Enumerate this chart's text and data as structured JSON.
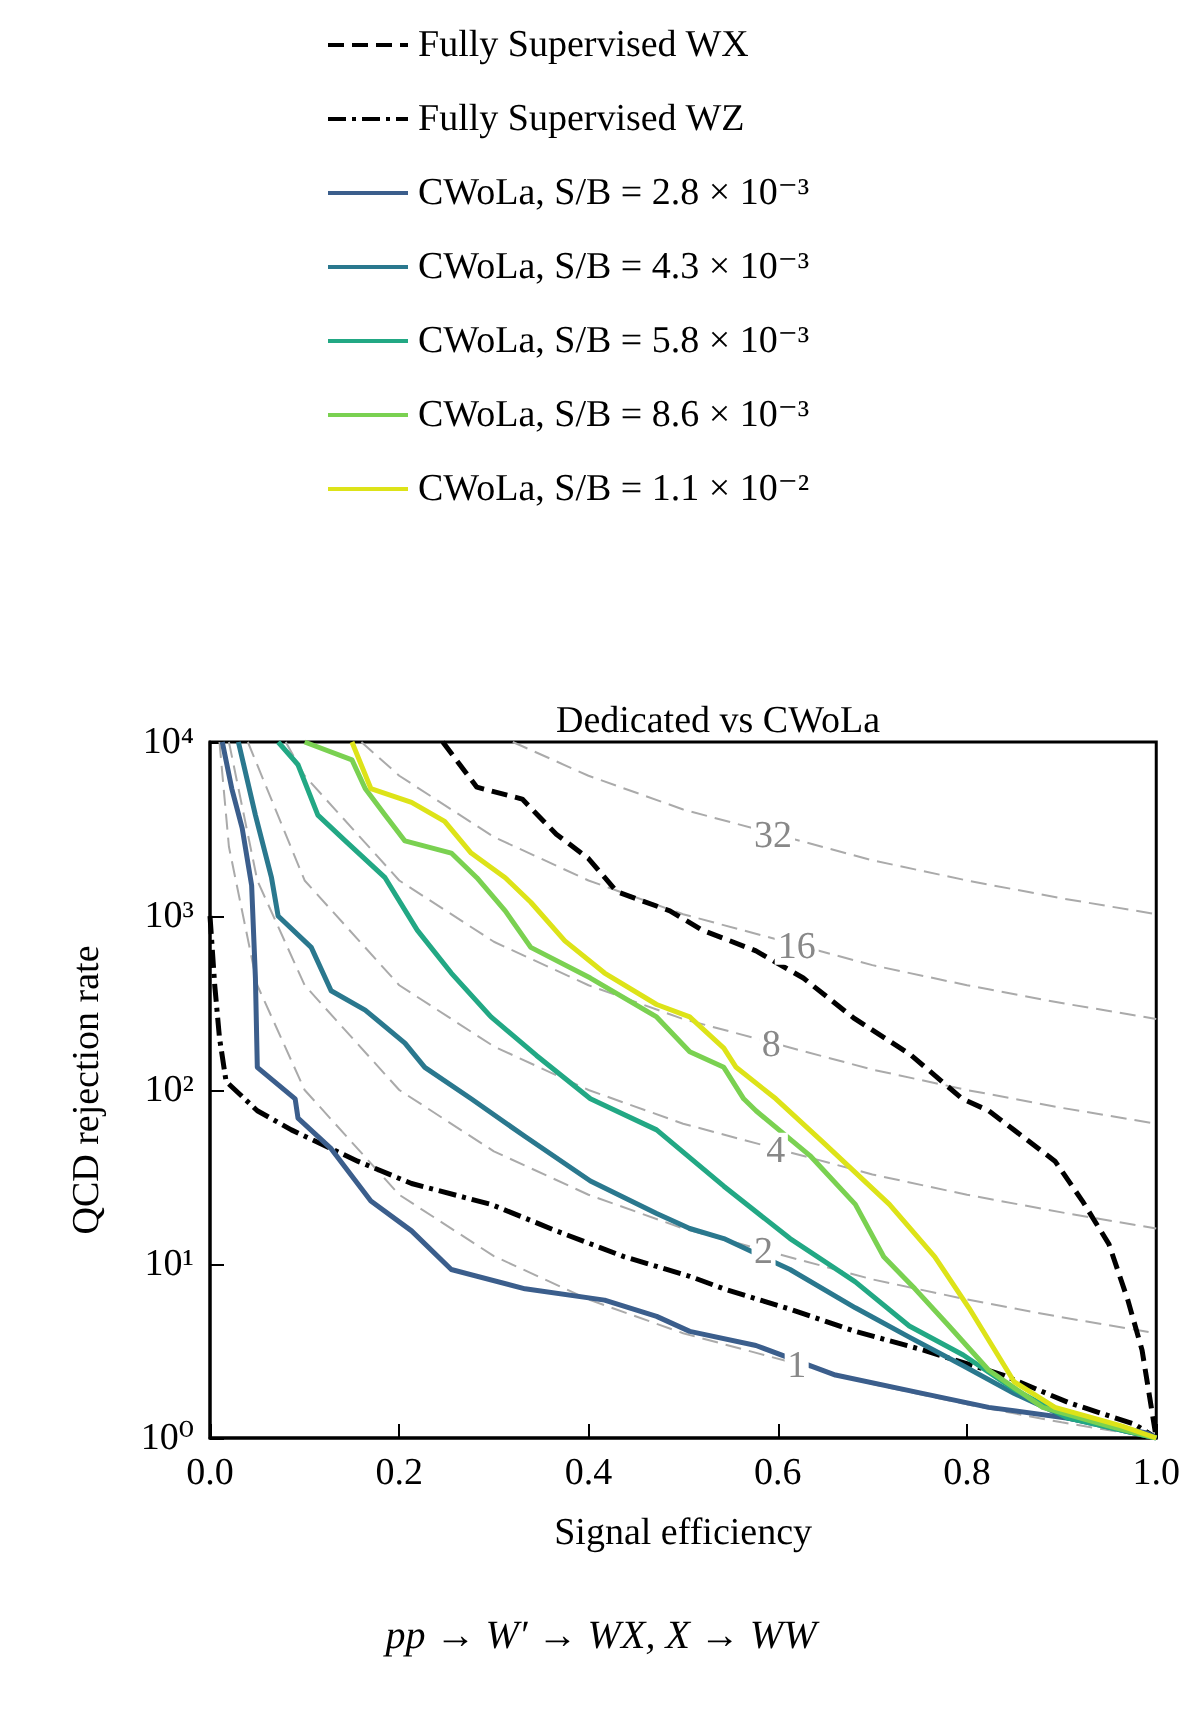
{
  "chart_data": {
    "type": "line",
    "title": "Dedicated vs CWoLa",
    "xlabel": "Signal efficiency",
    "ylabel": "QCD rejection rate",
    "xlim": [
      0,
      1
    ],
    "ylim": [
      1,
      10000
    ],
    "log": "y",
    "grid": false,
    "legend": "top",
    "marker": "none",
    "xticks": [
      {
        "value": 0,
        "label": "0.0"
      },
      {
        "value": 0.2,
        "label": "0.2"
      },
      {
        "value": 0.4,
        "label": "0.4"
      },
      {
        "value": 0.6,
        "label": "0.6"
      },
      {
        "value": 0.8,
        "label": "0.8"
      },
      {
        "value": 1,
        "label": "1.0"
      }
    ],
    "yticks": [
      {
        "value": 1,
        "label": "10⁰"
      },
      {
        "value": 10,
        "label": "10¹"
      },
      {
        "value": 100,
        "label": "10²"
      },
      {
        "value": 1000,
        "label": "10³"
      },
      {
        "value": 10000,
        "label": "10⁴"
      }
    ],
    "series": [
      {
        "name": "Fully Supervised WX",
        "color": "#000000",
        "line_style": "dashed",
        "x": [
          0.246,
          0.282,
          0.33,
          0.366,
          0.4,
          0.43,
          0.486,
          0.52,
          0.577,
          0.627,
          0.68,
          0.74,
          0.795,
          0.823,
          0.893,
          0.922,
          0.95,
          0.97,
          0.985,
          1.0
        ],
        "values": [
          10000,
          5500,
          4700,
          2950,
          2140,
          1380,
          1070,
          830,
          630,
          440,
          260,
          160,
          89,
          76,
          39,
          23,
          13,
          6.2,
          3.2,
          1
        ]
      },
      {
        "name": "Fully Supervised WZ",
        "color": "#000000",
        "line_style": "dashdot",
        "x": [
          0,
          0.005,
          0.01,
          0.017,
          0.05,
          0.086,
          0.156,
          0.213,
          0.297,
          0.366,
          0.438,
          0.507,
          0.543,
          0.613,
          0.682,
          0.754,
          0.838,
          0.907,
          0.977,
          1.0
        ],
        "values": [
          1000,
          400,
          200,
          112,
          76,
          59,
          39,
          29,
          22,
          15.5,
          11,
          8.5,
          7.2,
          5.5,
          4.1,
          3.2,
          2.3,
          1.6,
          1.2,
          1
        ]
      },
      {
        "name": "CWoLa, S/B = 2.8 × 10⁻³",
        "color": "#3b5e8c",
        "line_style": "solid",
        "x": [
          0.013,
          0.023,
          0.034,
          0.044,
          0.048,
          0.05,
          0.09,
          0.093,
          0.128,
          0.17,
          0.213,
          0.255,
          0.333,
          0.417,
          0.472,
          0.507,
          0.577,
          0.661,
          0.754,
          0.823,
          0.907,
          0.99,
          1.0
        ],
        "values": [
          10000,
          5400,
          3200,
          1500,
          440,
          135,
          89,
          69,
          46,
          23,
          15.5,
          9.3,
          7.2,
          6.2,
          5.0,
          4.1,
          3.4,
          2.3,
          1.8,
          1.5,
          1.3,
          1.07,
          1
        ]
      },
      {
        "name": "CWoLa, S/B = 4.3 × 10⁻³",
        "color": "#2a788e",
        "line_style": "solid",
        "x": [
          0.03,
          0.048,
          0.065,
          0.072,
          0.107,
          0.128,
          0.164,
          0.206,
          0.227,
          0.276,
          0.333,
          0.402,
          0.472,
          0.507,
          0.543,
          0.613,
          0.682,
          0.739,
          0.796,
          0.85,
          0.907,
          1.0
        ],
        "values": [
          10000,
          3800,
          1660,
          1000,
          660,
          372,
          288,
          186,
          135,
          89,
          54,
          30,
          19.5,
          16,
          14,
          9.3,
          5.6,
          3.8,
          2.6,
          1.8,
          1.3,
          1
        ]
      },
      {
        "name": "CWoLa, S/B = 5.8 × 10⁻³",
        "color": "#22a884",
        "line_style": "solid",
        "x": [
          0.072,
          0.093,
          0.114,
          0.143,
          0.185,
          0.219,
          0.255,
          0.297,
          0.345,
          0.402,
          0.472,
          0.543,
          0.613,
          0.682,
          0.739,
          0.796,
          0.85,
          0.907,
          1.0
        ],
        "values": [
          10000,
          7400,
          3800,
          2700,
          1660,
          830,
          470,
          263,
          158,
          89,
          59,
          28,
          14,
          7.9,
          4.4,
          3.0,
          1.9,
          1.3,
          1
        ]
      },
      {
        "name": "CWoLa, S/B = 8.6 × 10⁻³",
        "color": "#7ad151",
        "line_style": "solid",
        "x": [
          0.1,
          0.15,
          0.164,
          0.185,
          0.206,
          0.255,
          0.282,
          0.312,
          0.339,
          0.402,
          0.472,
          0.507,
          0.543,
          0.564,
          0.577,
          0.634,
          0.682,
          0.712,
          0.745,
          0.781,
          0.823,
          0.88,
          0.95,
          1.0
        ],
        "values": [
          10000,
          7900,
          5400,
          3800,
          2700,
          2300,
          1660,
          1070,
          660,
          440,
          263,
          166,
          135,
          89,
          76,
          42,
          22,
          11,
          7.2,
          4.4,
          2.45,
          1.5,
          1.17,
          1
        ]
      },
      {
        "name": "CWoLa, S/B = 1.1 × 10⁻²",
        "color": "#dde318",
        "line_style": "solid",
        "x": [
          0.15,
          0.17,
          0.213,
          0.248,
          0.276,
          0.312,
          0.339,
          0.375,
          0.417,
          0.472,
          0.507,
          0.543,
          0.556,
          0.598,
          0.648,
          0.718,
          0.766,
          0.802,
          0.85,
          0.893,
          0.964,
          1.0
        ],
        "values": [
          10000,
          5400,
          4500,
          3500,
          2300,
          1660,
          1200,
          720,
          470,
          310,
          263,
          174,
          135,
          89,
          50,
          22,
          11,
          5.6,
          2.1,
          1.5,
          1.17,
          1
        ]
      },
      {
        "color": "#aaaaaa",
        "line_style": "dashed",
        "x": [
          0.01,
          0.02,
          0.05,
          0.1,
          0.2,
          0.3,
          0.4,
          0.5,
          0.7,
          0.8,
          0.9,
          1.0
        ],
        "values": [
          10000,
          2500,
          400,
          100,
          25,
          11.1,
          6.25,
          4,
          2.04,
          1.56,
          1.23,
          1
        ]
      },
      {
        "color": "#aaaaaa",
        "line_style": "dashed",
        "x": [
          0.02,
          0.05,
          0.1,
          0.2,
          0.3,
          0.4,
          0.5,
          0.7,
          0.8,
          0.9,
          1.0
        ],
        "values": [
          10000,
          1600,
          400,
          100,
          44.4,
          25,
          16,
          8.16,
          6.25,
          4.94,
          4
        ]
      },
      {
        "color": "#aaaaaa",
        "line_style": "dashed",
        "x": [
          0.04,
          0.1,
          0.2,
          0.3,
          0.4,
          0.5,
          0.7,
          0.8,
          0.9,
          1.0
        ],
        "values": [
          10000,
          1600,
          400,
          178,
          100,
          64,
          32.7,
          25,
          19.8,
          16
        ]
      },
      {
        "color": "#aaaaaa",
        "line_style": "dashed",
        "x": [
          0.08,
          0.1,
          0.2,
          0.3,
          0.4,
          0.5,
          0.7,
          0.8,
          0.9,
          1.0
        ],
        "values": [
          10000,
          6400,
          1600,
          711,
          400,
          256,
          131,
          100,
          79,
          64
        ]
      },
      {
        "color": "#aaaaaa",
        "line_style": "dashed",
        "x": [
          0.16,
          0.2,
          0.3,
          0.4,
          0.5,
          0.7,
          0.8,
          0.9,
          1.0
        ],
        "values": [
          10000,
          6400,
          2844,
          1600,
          1024,
          522,
          400,
          316,
          256
        ]
      },
      {
        "color": "#aaaaaa",
        "line_style": "dashed",
        "x": [
          0.32,
          0.4,
          0.5,
          0.7,
          0.8,
          0.9,
          1.0
        ],
        "values": [
          10000,
          6400,
          4096,
          2090,
          1600,
          1264,
          1024
        ]
      }
    ],
    "annotations": [
      {
        "text": "1",
        "x": 0.62,
        "y": 2.6
      },
      {
        "text": "2",
        "x": 0.585,
        "y": 11.7
      },
      {
        "text": "4",
        "x": 0.598,
        "y": 44.7
      },
      {
        "text": "8",
        "x": 0.593,
        "y": 182
      },
      {
        "text": "16",
        "x": 0.62,
        "y": 666
      },
      {
        "text": "32",
        "x": 0.595,
        "y": 2892
      },
      "pp → W′ → WX, X → WW"
    ]
  }
}
